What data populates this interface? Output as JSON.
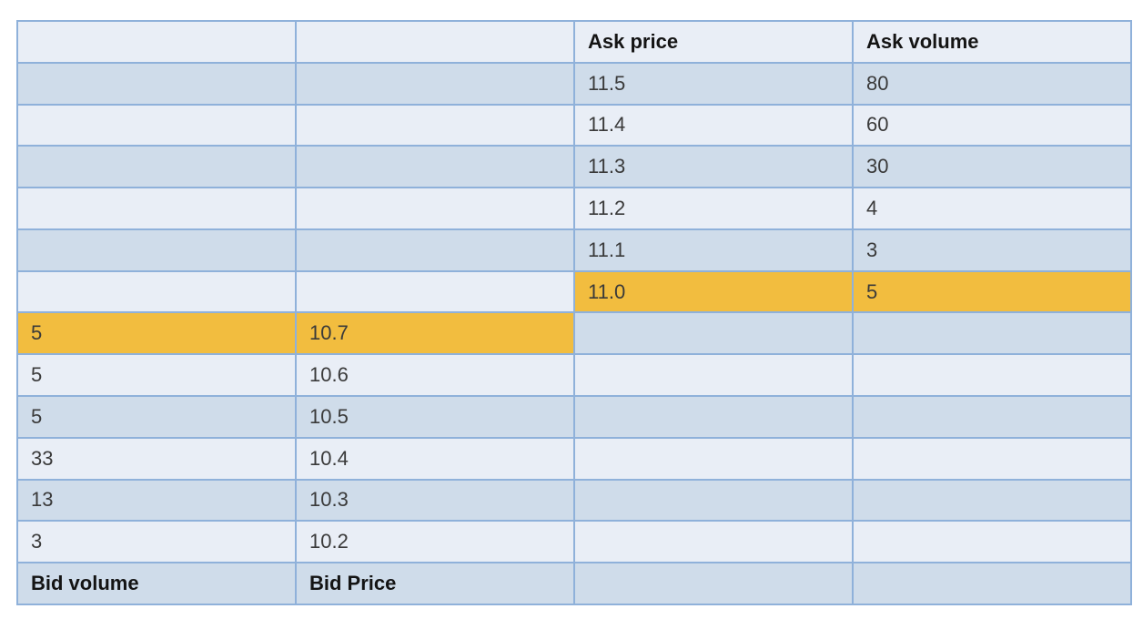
{
  "headers": {
    "ask_price": "Ask price",
    "ask_volume": "Ask volume",
    "bid_volume": "Bid volume",
    "bid_price": "Bid Price"
  },
  "asks": [
    {
      "price": "11.5",
      "volume": "80"
    },
    {
      "price": "11.4",
      "volume": "60"
    },
    {
      "price": "11.3",
      "volume": "30"
    },
    {
      "price": "11.2",
      "volume": "4"
    },
    {
      "price": "11.1",
      "volume": "3"
    },
    {
      "price": "11.0",
      "volume": "5"
    }
  ],
  "bids": [
    {
      "volume": "5",
      "price": "10.7"
    },
    {
      "volume": "5",
      "price": "10.6"
    },
    {
      "volume": "5",
      "price": "10.5"
    },
    {
      "volume": "33",
      "price": "10.4"
    },
    {
      "volume": "13",
      "price": "10.3"
    },
    {
      "volume": "3",
      "price": "10.2"
    }
  ],
  "colors": {
    "row_light": "#e9eef6",
    "row_dark": "#cfdcea",
    "border": "#8fb1da",
    "highlight": "#f2bd3f"
  }
}
